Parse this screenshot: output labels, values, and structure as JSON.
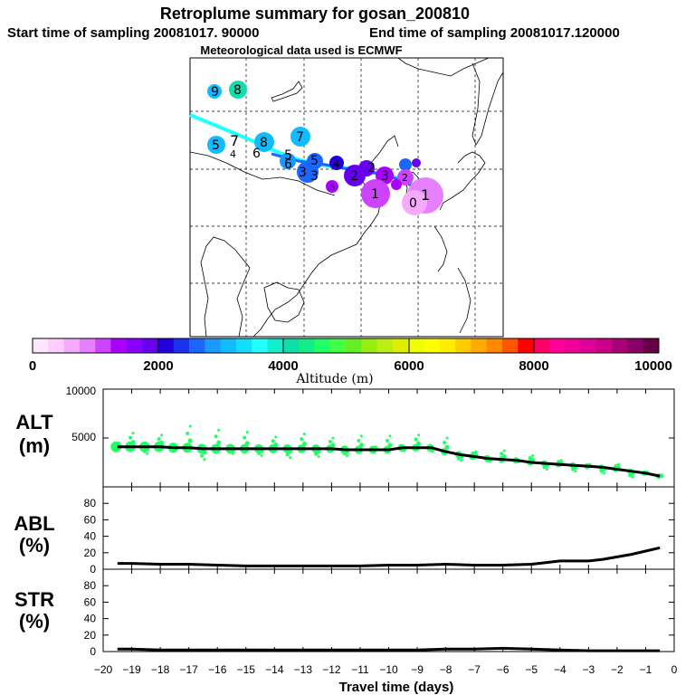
{
  "title": "Retroplume summary for gosan_200810",
  "start_label": "Start time of sampling 20081017. 90000",
  "end_label": "End time of sampling 20081017.120000",
  "met_label": "Meteorological data used is ECMWF",
  "colorbar": {
    "ticks": [
      "0",
      "2000",
      "4000",
      "6000",
      "8000",
      "10000"
    ],
    "label": "Altitude (m)",
    "colors": [
      "#ffe6ff",
      "#ffccff",
      "#f5aaff",
      "#e680ff",
      "#cc44ff",
      "#aa00ff",
      "#8800ff",
      "#6600ee",
      "#2200dd",
      "#1b33ee",
      "#1b66ff",
      "#1b99ff",
      "#11bbff",
      "#11ddff",
      "#22ffff",
      "#11eecc",
      "#11ddaa",
      "#11ee88",
      "#22ff66",
      "#44ff44",
      "#66ee22",
      "#99ee11",
      "#bbee11",
      "#ddee00",
      "#eeff00",
      "#ffff00",
      "#ffee00",
      "#ffcc00",
      "#ffaa00",
      "#ff8800",
      "#ff5500",
      "#ff0000",
      "#ff0066",
      "#ff0099",
      "#ee0099",
      "#dd0099",
      "#cc0088",
      "#aa0077",
      "#880066",
      "#660044"
    ]
  },
  "map_labels": [
    {
      "text": "9",
      "lon": 0,
      "lat": 0
    },
    {
      "text": "8",
      "lon": 0,
      "lat": 0
    },
    {
      "text": "7",
      "lon": 0,
      "lat": 0
    },
    {
      "text": "5",
      "lon": 0,
      "lat": 0
    },
    {
      "text": "7",
      "lon": 0,
      "lat": 0
    },
    {
      "text": "8",
      "lon": 0,
      "lat": 0
    },
    {
      "text": "4",
      "lon": 0,
      "lat": 0
    },
    {
      "text": "6",
      "lon": 0,
      "lat": 0
    },
    {
      "text": "5",
      "lon": 0,
      "lat": 0
    },
    {
      "text": "6",
      "lon": 0,
      "lat": 0
    },
    {
      "text": "5",
      "lon": 0,
      "lat": 0
    },
    {
      "text": "3",
      "lon": 0,
      "lat": 0
    },
    {
      "text": "3",
      "lon": 0,
      "lat": 0
    },
    {
      "text": "4",
      "lon": 0,
      "lat": 0
    },
    {
      "text": "2",
      "lon": 0,
      "lat": 0
    },
    {
      "text": "2",
      "lon": 0,
      "lat": 0
    },
    {
      "text": "5",
      "lon": 0,
      "lat": 0
    },
    {
      "text": "3",
      "lon": 0,
      "lat": 0
    },
    {
      "text": "1",
      "lon": 0,
      "lat": 0
    },
    {
      "text": "0",
      "lon": 0,
      "lat": 0
    },
    {
      "text": "1",
      "lon": 0,
      "lat": 0
    },
    {
      "text": "2",
      "lon": 0,
      "lat": 0
    }
  ],
  "chart_data": [
    {
      "type": "scatter",
      "ylabel": "ALT (m)",
      "ylabel_line1": "ALT",
      "ylabel_line2": "(m)",
      "ylim": [
        0,
        10000
      ],
      "yticks": [
        "5000",
        "10000"
      ],
      "xlim": [
        -20,
        0
      ],
      "series": [
        {
          "name": "mean altitude",
          "x": [
            -19.5,
            -19,
            -18.5,
            -18,
            -17.5,
            -17,
            -16.5,
            -16,
            -15.5,
            -15,
            -14.5,
            -14,
            -13.5,
            -13,
            -12.5,
            -12,
            -11.5,
            -11,
            -10.5,
            -10,
            -9.5,
            -9,
            -8.5,
            -8,
            -7.5,
            -7,
            -6.5,
            -6,
            -5.5,
            -5,
            -4.5,
            -4,
            -3.5,
            -3,
            -2.5,
            -2,
            -1.5,
            -1,
            -0.5
          ],
          "values": [
            4100,
            4100,
            4100,
            4100,
            4000,
            4000,
            3900,
            3900,
            3900,
            3900,
            3900,
            3900,
            3900,
            3900,
            3900,
            3900,
            3800,
            3800,
            3800,
            3800,
            4000,
            4000,
            4000,
            3600,
            3300,
            3100,
            2900,
            2800,
            2700,
            2500,
            2400,
            2300,
            2200,
            2100,
            2000,
            1800,
            1600,
            1400,
            1100
          ]
        },
        {
          "name": "particles",
          "x": [
            -19.5,
            -19,
            -18.5,
            -18,
            -17.5,
            -17,
            -16.5,
            -16,
            -15.5,
            -15,
            -14.5,
            -14,
            -13.5,
            -13,
            -12.5,
            -12,
            -11.5,
            -11,
            -10.5,
            -10,
            -9.5,
            -9,
            -8.5,
            -8,
            -7.5,
            -7,
            -6.5,
            -6,
            -5.5,
            -5,
            -4.5,
            -4,
            -3.5,
            -3,
            -2.5,
            -2,
            -1.5,
            -1,
            -0.5
          ],
          "values": [
            4500,
            5500,
            3400,
            5300,
            3800,
            6200,
            2800,
            5800,
            3400,
            5600,
            3200,
            5100,
            3000,
            5400,
            3100,
            5000,
            3200,
            5200,
            4100,
            5200,
            3700,
            5300,
            3600,
            5000,
            2700,
            3600,
            2600,
            3700,
            2600,
            3200,
            1800,
            2700,
            1600,
            2300,
            1400,
            2300,
            1000,
            1500,
            1200
          ]
        }
      ]
    },
    {
      "type": "line",
      "ylabel": "ABL (%)",
      "ylabel_line1": "ABL",
      "ylabel_line2": "(%)",
      "ylim": [
        0,
        100
      ],
      "yticks": [
        "0",
        "20",
        "40",
        "60",
        "80"
      ],
      "xlim": [
        -20,
        0
      ],
      "x": [
        -19.5,
        -19,
        -18,
        -17,
        -16,
        -15,
        -14,
        -13,
        -12,
        -11,
        -10,
        -9,
        -8,
        -7,
        -6,
        -5,
        -4.5,
        -4,
        -3,
        -2.5,
        -2,
        -1.5,
        -1,
        -0.5
      ],
      "values": [
        7,
        7,
        6,
        6,
        5,
        4,
        4,
        4,
        4,
        4,
        5,
        5,
        6,
        5,
        5,
        6,
        8,
        10,
        10,
        12,
        15,
        18,
        22,
        26
      ]
    },
    {
      "type": "line",
      "ylabel": "STR (%)",
      "ylabel_line1": "STR",
      "ylabel_line2": "(%)",
      "ylim": [
        0,
        100
      ],
      "yticks": [
        "0",
        "20",
        "40",
        "60",
        "80"
      ],
      "xlim": [
        -20,
        0
      ],
      "xlabel": "Travel time (days)",
      "xticks": [
        "−20",
        "−19",
        "−18",
        "−17",
        "−16",
        "−15",
        "−14",
        "−13",
        "−12",
        "−11",
        "−10",
        "−9",
        "−8",
        "−7",
        "−6",
        "−5",
        "−4",
        "−3",
        "−2",
        "−1",
        "0"
      ],
      "x": [
        -19.5,
        -19,
        -18,
        -17,
        -16,
        -15,
        -14,
        -13,
        -12,
        -11,
        -10,
        -9,
        -8,
        -7,
        -6,
        -5,
        -4,
        -3,
        -2,
        -1,
        -0.5
      ],
      "values": [
        3,
        3,
        2,
        2,
        2,
        2,
        2,
        2,
        2,
        2,
        2,
        2,
        3,
        3,
        4,
        3,
        2,
        1,
        1,
        1,
        1
      ]
    }
  ]
}
